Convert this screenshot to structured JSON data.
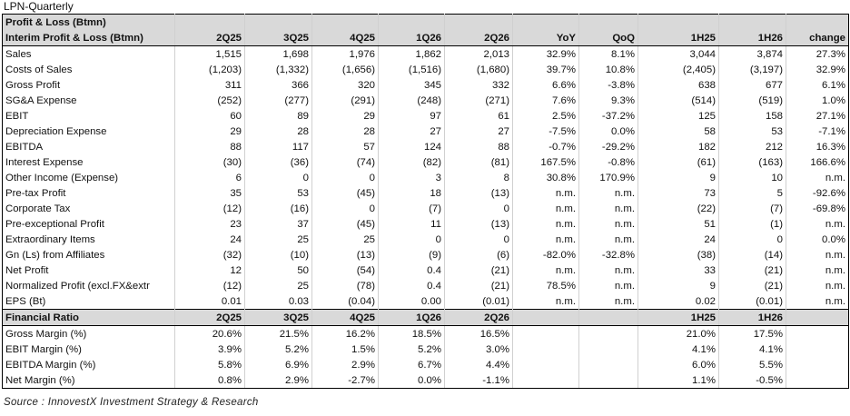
{
  "page_title": "LPN-Quarterly",
  "table": {
    "title_row": "Profit & Loss (Btmn)",
    "header_label": "Interim Profit & Loss (Btmn)",
    "columns": [
      "2Q25",
      "3Q25",
      "4Q25",
      "1Q26",
      "2Q26",
      "YoY",
      "QoQ",
      "1H25",
      "1H26",
      "change"
    ],
    "rows": [
      {
        "label": "Sales",
        "values": [
          "1,515",
          "1,698",
          "1,976",
          "1,862",
          "2,013",
          "32.9%",
          "8.1%",
          "3,044",
          "3,874",
          "27.3%"
        ]
      },
      {
        "label": "Costs of Sales",
        "values": [
          "(1,203)",
          "(1,332)",
          "(1,656)",
          "(1,516)",
          "(1,680)",
          "39.7%",
          "10.8%",
          "(2,405)",
          "(3,197)",
          "32.9%"
        ]
      },
      {
        "label": "Gross Profit",
        "values": [
          "311",
          "366",
          "320",
          "345",
          "332",
          "6.6%",
          "-3.8%",
          "638",
          "677",
          "6.1%"
        ]
      },
      {
        "label": "SG&A Expense",
        "values": [
          "(252)",
          "(277)",
          "(291)",
          "(248)",
          "(271)",
          "7.6%",
          "9.3%",
          "(514)",
          "(519)",
          "1.0%"
        ]
      },
      {
        "label": "EBIT",
        "values": [
          "60",
          "89",
          "29",
          "97",
          "61",
          "2.5%",
          "-37.2%",
          "125",
          "158",
          "27.1%"
        ]
      },
      {
        "label": "Depreciation Expense",
        "values": [
          "29",
          "28",
          "28",
          "27",
          "27",
          "-7.5%",
          "0.0%",
          "58",
          "53",
          "-7.1%"
        ]
      },
      {
        "label": "EBITDA",
        "values": [
          "88",
          "117",
          "57",
          "124",
          "88",
          "-0.7%",
          "-29.2%",
          "182",
          "212",
          "16.3%"
        ]
      },
      {
        "label": "Interest Expense",
        "values": [
          "(30)",
          "(36)",
          "(74)",
          "(82)",
          "(81)",
          "167.5%",
          "-0.8%",
          "(61)",
          "(163)",
          "166.6%"
        ]
      },
      {
        "label": "Other Income (Expense)",
        "values": [
          "6",
          "0",
          "0",
          "3",
          "8",
          "30.8%",
          "170.9%",
          "9",
          "10",
          "n.m."
        ]
      },
      {
        "label": "Pre-tax Profit",
        "values": [
          "35",
          "53",
          "(45)",
          "18",
          "(13)",
          "n.m.",
          "n.m.",
          "73",
          "5",
          "-92.6%"
        ]
      },
      {
        "label": "Corporate Tax",
        "values": [
          "(12)",
          "(16)",
          "0",
          "(7)",
          "0",
          "n.m.",
          "n.m.",
          "(22)",
          "(7)",
          "-69.8%"
        ]
      },
      {
        "label": "Pre-exceptional Profit",
        "values": [
          "23",
          "37",
          "(45)",
          "11",
          "(13)",
          "n.m.",
          "n.m.",
          "51",
          "(1)",
          "n.m."
        ]
      },
      {
        "label": "Extraordinary Items",
        "values": [
          "24",
          "25",
          "25",
          "0",
          "0",
          "n.m.",
          "n.m.",
          "24",
          "0",
          "0.0%"
        ]
      },
      {
        "label": "Gn (Ls) from Affiliates",
        "values": [
          "(32)",
          "(10)",
          "(13)",
          "(9)",
          "(6)",
          "-82.0%",
          "-32.8%",
          "(38)",
          "(14)",
          "n.m."
        ]
      },
      {
        "label": "Net Profit",
        "values": [
          "12",
          "50",
          "(54)",
          "0.4",
          "(21)",
          "n.m.",
          "n.m.",
          "33",
          "(21)",
          "n.m."
        ]
      },
      {
        "label": "Normalized Profit (excl.FX&extr",
        "values": [
          "(12)",
          "25",
          "(78)",
          "0.4",
          "(21)",
          "78.5%",
          "n.m.",
          "9",
          "(21)",
          "n.m."
        ]
      },
      {
        "label": "EPS (Bt)",
        "values": [
          "0.01",
          "0.03",
          "(0.04)",
          "0.00",
          "(0.01)",
          "n.m.",
          "n.m.",
          "0.02",
          "(0.01)",
          "n.m."
        ]
      }
    ],
    "ratio_header": {
      "label": "Financial Ratio",
      "values": [
        "2Q25",
        "3Q25",
        "4Q25",
        "1Q26",
        "2Q26",
        "",
        "",
        "1H25",
        "1H26",
        ""
      ]
    },
    "ratio_rows": [
      {
        "label": "Gross Margin (%)",
        "values": [
          "20.6%",
          "21.5%",
          "16.2%",
          "18.5%",
          "16.5%",
          "",
          "",
          "21.0%",
          "17.5%",
          ""
        ]
      },
      {
        "label": "EBIT Margin (%)",
        "values": [
          "3.9%",
          "5.2%",
          "1.5%",
          "5.2%",
          "3.0%",
          "",
          "",
          "4.1%",
          "4.1%",
          ""
        ]
      },
      {
        "label": "EBITDA Margin (%)",
        "values": [
          "5.8%",
          "6.9%",
          "2.9%",
          "6.7%",
          "4.4%",
          "",
          "",
          "6.0%",
          "5.5%",
          ""
        ]
      },
      {
        "label": "Net Margin (%)",
        "values": [
          "0.8%",
          "2.9%",
          "-2.7%",
          "0.0%",
          "-1.1%",
          "",
          "",
          "1.1%",
          "-0.5%",
          ""
        ]
      }
    ]
  },
  "source": "Source : InnovestX Investment Strategy & Research",
  "colors": {
    "header_bg": "#d9d9d9",
    "border": "#000000"
  }
}
